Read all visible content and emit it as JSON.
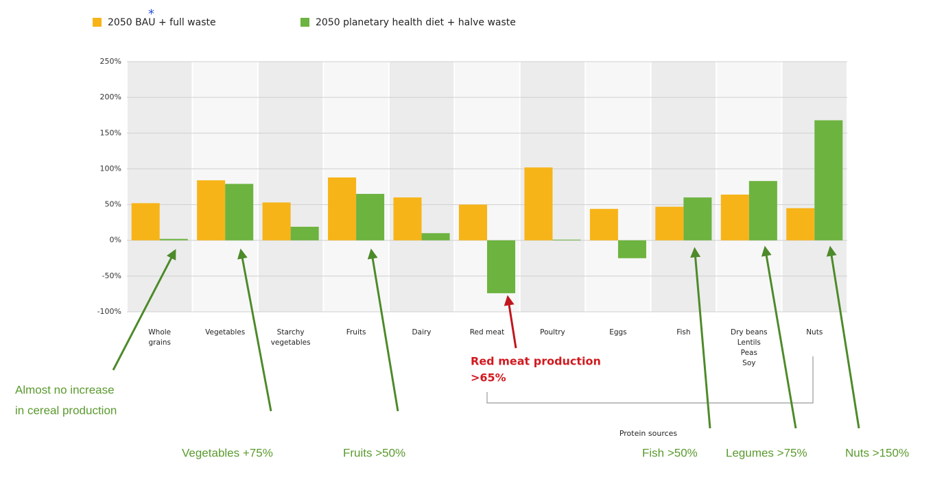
{
  "chart_data": {
    "type": "bar",
    "categories": [
      "Whole\ngrains",
      "Vegetables",
      "Starchy\nvegetables",
      "Fruits",
      "Dairy",
      "Red meat",
      "Poultry",
      "Eggs",
      "Fish",
      "Dry beans\nLentils\nPeas\nSoy",
      "Nuts"
    ],
    "series": [
      {
        "name": "2050 BAU + full waste",
        "color": "#f7b418",
        "values": [
          52,
          84,
          53,
          88,
          60,
          50,
          102,
          44,
          47,
          64,
          45
        ]
      },
      {
        "name": "2050 planetary health diet + halve waste",
        "color": "#6db33f",
        "values": [
          2,
          79,
          19,
          65,
          10,
          -74,
          1,
          -25,
          60,
          83,
          168
        ]
      }
    ],
    "ylim": [
      -100,
      250
    ],
    "yticks": [
      {
        "value": -100,
        "label": "-100%"
      },
      {
        "value": -50,
        "label": "-50%"
      },
      {
        "value": 0,
        "label": "0%"
      },
      {
        "value": 50,
        "label": "50%"
      },
      {
        "value": 100,
        "label": "100%"
      },
      {
        "value": 150,
        "label": "150%"
      },
      {
        "value": 200,
        "label": "200%"
      },
      {
        "value": 250,
        "label": "250%"
      }
    ],
    "grid": true,
    "annotations": {
      "asterisk": "*",
      "cereal": [
        "Almost no increase",
        "in cereal production"
      ],
      "vegetables": "Vegetables +75%",
      "fruits": "Fruits >50%",
      "red_meat": [
        "Red meat production",
        ">65%"
      ],
      "fish": "Fish >50%",
      "legumes": "Legumes >75%",
      "nuts": "Nuts >150%",
      "protein": "Protein sources"
    }
  }
}
